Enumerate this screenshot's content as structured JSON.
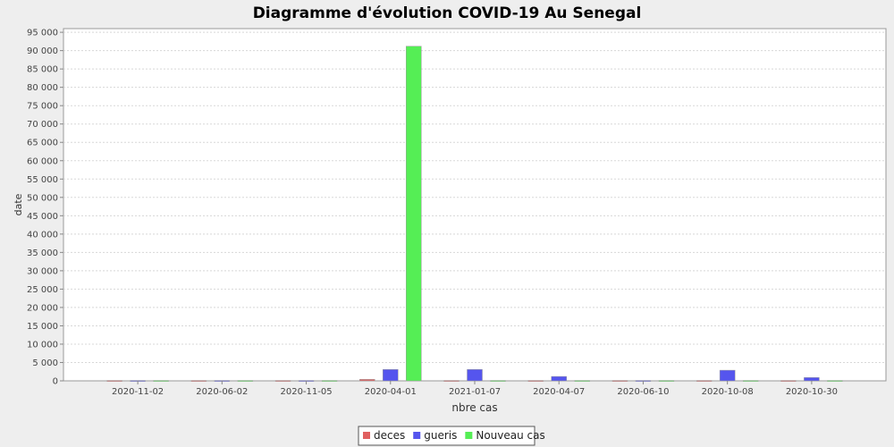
{
  "chart_data": {
    "type": "bar",
    "title": "Diagramme d'évolution COVID-19 Au Senegal",
    "xlabel": "nbre cas",
    "ylabel": "date",
    "categories": [
      "2020-11-02",
      "2020-06-02",
      "2020-11-05",
      "2020-04-01",
      "2021-01-07",
      "2020-04-07",
      "2020-06-10",
      "2020-10-08",
      "2020-10-30"
    ],
    "series": [
      {
        "name": "deces",
        "color": "#e06060",
        "values": [
          100,
          100,
          100,
          400,
          100,
          100,
          100,
          100,
          100
        ]
      },
      {
        "name": "gueris",
        "color": "#5555ee",
        "values": [
          100,
          100,
          100,
          3100,
          3100,
          1200,
          100,
          2900,
          900
        ]
      },
      {
        "name": "Nouveau cas",
        "color": "#55ee55",
        "values": [
          100,
          100,
          100,
          91200,
          100,
          100,
          100,
          100,
          100
        ]
      }
    ],
    "ylim": [
      0,
      96000
    ],
    "yticks": [
      0,
      5000,
      10000,
      15000,
      20000,
      25000,
      30000,
      35000,
      40000,
      45000,
      50000,
      55000,
      60000,
      65000,
      70000,
      75000,
      80000,
      85000,
      90000,
      95000
    ],
    "ytick_labels": [
      "0",
      "5 000",
      "10 000",
      "15 000",
      "20 000",
      "25 000",
      "30 000",
      "35 000",
      "40 000",
      "45 000",
      "50 000",
      "55 000",
      "60 000",
      "65 000",
      "70 000",
      "75 000",
      "80 000",
      "85 000",
      "90 000",
      "95 000"
    ],
    "grid": true,
    "legend_position": "bottom-center"
  }
}
